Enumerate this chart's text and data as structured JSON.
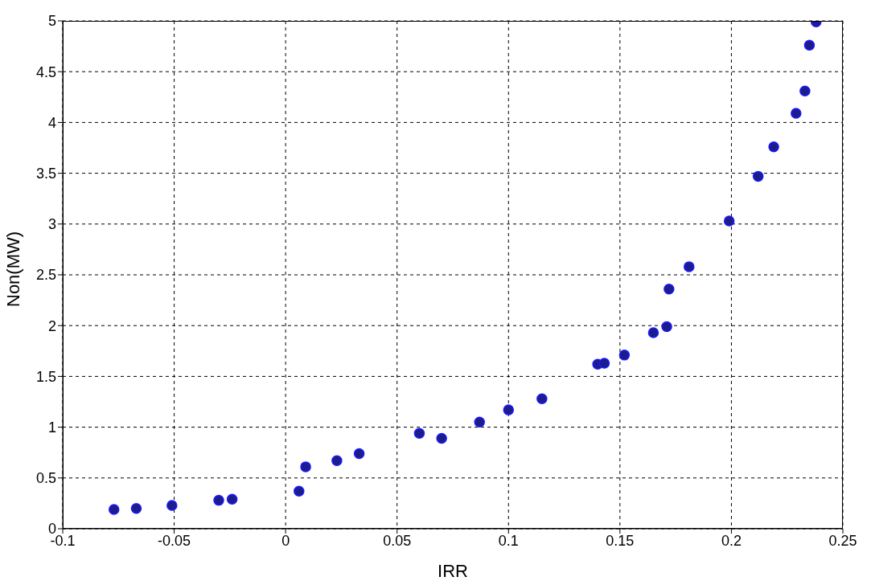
{
  "chart_data": {
    "type": "scatter",
    "xlabel": "IRR",
    "ylabel": "Non(MW)",
    "xlim": [
      -0.1,
      0.25
    ],
    "xticks": [
      -0.1,
      -0.05,
      0,
      0.05,
      0.1,
      0.15,
      0.2,
      0.25
    ],
    "ylim": [
      0,
      5
    ],
    "yticks": [
      0,
      0.5,
      1,
      1.5,
      2,
      2.5,
      3,
      3.5,
      4,
      4.5,
      5
    ],
    "grid": true,
    "marker": "circle",
    "legend": false,
    "series": [
      {
        "color": "#1c1c8c",
        "x": [
          -0.077,
          -0.067,
          -0.051,
          -0.03,
          -0.024,
          0.006,
          0.009,
          0.023,
          0.033,
          0.06,
          0.07,
          0.087,
          0.1,
          0.115,
          0.14,
          0.143,
          0.152,
          0.165,
          0.171,
          0.172,
          0.181,
          0.199,
          0.212,
          0.219,
          0.229,
          0.233,
          0.235,
          0.238
        ],
        "values": [
          0.19,
          0.2,
          0.23,
          0.28,
          0.29,
          0.37,
          0.61,
          0.67,
          0.74,
          0.94,
          0.89,
          1.05,
          1.17,
          1.28,
          1.62,
          1.63,
          1.71,
          1.93,
          1.99,
          2.36,
          2.58,
          3.03,
          3.47,
          3.76,
          4.09,
          4.31,
          4.76,
          4.99
        ]
      }
    ]
  }
}
